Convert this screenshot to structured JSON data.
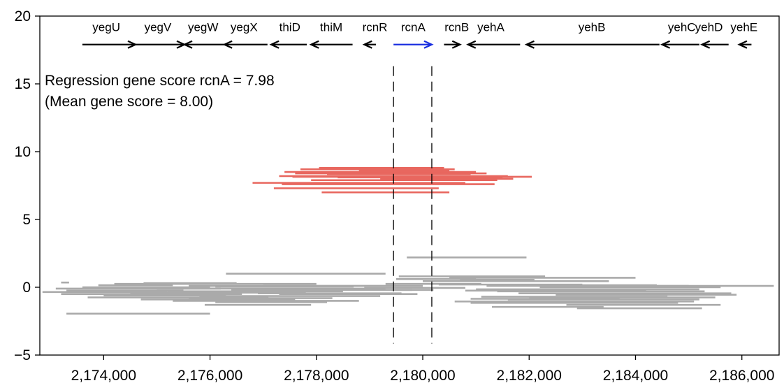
{
  "chart_data": {
    "type": "line",
    "title": "",
    "xlabel": "",
    "ylabel": "",
    "xlim": [
      2172800,
      2186700
    ],
    "ylim": [
      -5,
      20
    ],
    "x_ticks": [
      {
        "value": 2174000,
        "label": "2,174,000"
      },
      {
        "value": 2176000,
        "label": "2,176,000"
      },
      {
        "value": 2178000,
        "label": "2,178,000"
      },
      {
        "value": 2180000,
        "label": "2,180,000"
      },
      {
        "value": 2182000,
        "label": "2,182,000"
      },
      {
        "value": 2184000,
        "label": "2,184,000"
      },
      {
        "value": 2186000,
        "label": "2,186,000"
      }
    ],
    "y_ticks": [
      {
        "value": -5,
        "label": "−5"
      },
      {
        "value": 0,
        "label": "0"
      },
      {
        "value": 5,
        "label": "5"
      },
      {
        "value": 10,
        "label": "10"
      },
      {
        "value": 15,
        "label": "15"
      },
      {
        "value": 20,
        "label": "20"
      }
    ],
    "annotations": [
      "Regression gene score rcnA = 7.98",
      "(Mean gene score = 8.00)"
    ],
    "highlight_lines_x": [
      2179450,
      2180170
    ],
    "genes": [
      {
        "name": "yegU",
        "start": 2173600,
        "end": 2174600,
        "strand": "+",
        "color": "#000000",
        "label_x": 2174050
      },
      {
        "name": "yegV",
        "start": 2174600,
        "end": 2175520,
        "strand": "+",
        "color": "#000000",
        "label_x": 2175020
      },
      {
        "name": "yegW",
        "start": 2175520,
        "end": 2176270,
        "strand": "-",
        "color": "#000000",
        "label_x": 2175870
      },
      {
        "name": "yegX",
        "start": 2176270,
        "end": 2177080,
        "strand": "-",
        "color": "#000000",
        "label_x": 2176640
      },
      {
        "name": "thiD",
        "start": 2177150,
        "end": 2177820,
        "strand": "-",
        "color": "#000000",
        "label_x": 2177500
      },
      {
        "name": "thiM",
        "start": 2177900,
        "end": 2178680,
        "strand": "-",
        "color": "#000000",
        "label_x": 2178280
      },
      {
        "name": "rcnR",
        "start": 2178900,
        "end": 2179120,
        "strand": "-",
        "color": "#000000",
        "label_x": 2179100
      },
      {
        "name": "rcnA",
        "start": 2179450,
        "end": 2180170,
        "strand": "+",
        "color": "#1a2fe0",
        "label_x": 2179820
      },
      {
        "name": "rcnB",
        "start": 2180400,
        "end": 2180700,
        "strand": "+",
        "color": "#000000",
        "label_x": 2180640
      },
      {
        "name": "yehA",
        "start": 2180850,
        "end": 2181830,
        "strand": "-",
        "color": "#000000",
        "label_x": 2181280
      },
      {
        "name": "yehB",
        "start": 2181950,
        "end": 2184450,
        "strand": "-",
        "color": "#000000",
        "label_x": 2183180
      },
      {
        "name": "yehC",
        "start": 2184500,
        "end": 2185200,
        "strand": "-",
        "color": "#000000",
        "label_x": 2184870
      },
      {
        "name": "yehD",
        "start": 2185250,
        "end": 2185750,
        "strand": "-",
        "color": "#000000",
        "label_x": 2185380
      },
      {
        "name": "yehE",
        "start": 2185950,
        "end": 2186180,
        "strand": "-",
        "color": "#000000",
        "label_x": 2186040
      }
    ],
    "gene_arrow_y": 17.9,
    "gene_label_y": 18.9,
    "series": [
      {
        "color": "#e8675f",
        "segments": [
          [
            2178050,
            2180400,
            8.8
          ],
          [
            2177700,
            2180600,
            8.7
          ],
          [
            2178800,
            2180500,
            8.6
          ],
          [
            2177400,
            2181000,
            8.5
          ],
          [
            2177600,
            2181200,
            8.4
          ],
          [
            2178200,
            2180900,
            8.35
          ],
          [
            2177300,
            2181600,
            8.2
          ],
          [
            2177550,
            2182050,
            8.15
          ],
          [
            2178400,
            2181500,
            8.1
          ],
          [
            2179200,
            2181700,
            8.0
          ],
          [
            2177900,
            2181400,
            7.9
          ],
          [
            2176800,
            2180800,
            7.7
          ],
          [
            2177350,
            2181350,
            7.6
          ],
          [
            2177200,
            2180300,
            7.3
          ],
          [
            2178100,
            2180500,
            7.0
          ]
        ]
      },
      {
        "color": "#aaaaaa",
        "segments": [
          [
            2179700,
            2181950,
            2.2
          ],
          [
            2176300,
            2179300,
            1.0
          ],
          [
            2179550,
            2182300,
            0.8
          ],
          [
            2180500,
            2184000,
            0.7
          ],
          [
            2179500,
            2181000,
            0.6
          ],
          [
            2180700,
            2182100,
            0.55
          ],
          [
            2180000,
            2183500,
            0.45
          ],
          [
            2173200,
            2173350,
            0.35
          ],
          [
            2174750,
            2176500,
            0.3
          ],
          [
            2174200,
            2178000,
            0.25
          ],
          [
            2179300,
            2181100,
            0.25
          ],
          [
            2180300,
            2183000,
            0.2
          ],
          [
            2173900,
            2175300,
            0.15
          ],
          [
            2181600,
            2184400,
            0.15
          ],
          [
            2175600,
            2179500,
            0.1
          ],
          [
            2177000,
            2180000,
            0.1
          ],
          [
            2181200,
            2185000,
            0.1
          ],
          [
            2182800,
            2186600,
            0.1
          ],
          [
            2176100,
            2178700,
            0.05
          ],
          [
            2182200,
            2185600,
            0.0
          ],
          [
            2173600,
            2176000,
            0.0
          ],
          [
            2178900,
            2180800,
            -0.05
          ],
          [
            2173100,
            2176200,
            -0.1
          ],
          [
            2175000,
            2179300,
            -0.1
          ],
          [
            2181000,
            2185200,
            -0.15
          ],
          [
            2176400,
            2179800,
            -0.2
          ],
          [
            2179000,
            2180200,
            -0.2
          ],
          [
            2173300,
            2175500,
            -0.25
          ],
          [
            2180800,
            2184200,
            -0.25
          ],
          [
            2175200,
            2178500,
            -0.3
          ],
          [
            2181400,
            2185300,
            -0.3
          ],
          [
            2172850,
            2175200,
            -0.35
          ],
          [
            2174500,
            2177800,
            -0.4
          ],
          [
            2176900,
            2179600,
            -0.45
          ],
          [
            2181800,
            2185800,
            -0.45
          ],
          [
            2173200,
            2176600,
            -0.5
          ],
          [
            2177300,
            2179900,
            -0.5
          ],
          [
            2182500,
            2185900,
            -0.55
          ],
          [
            2174000,
            2176300,
            -0.6
          ],
          [
            2175800,
            2179200,
            -0.65
          ],
          [
            2181100,
            2184600,
            -0.7
          ],
          [
            2173700,
            2177100,
            -0.75
          ],
          [
            2182000,
            2185500,
            -0.75
          ],
          [
            2175600,
            2178300,
            -0.8
          ],
          [
            2180900,
            2183700,
            -0.85
          ],
          [
            2174700,
            2177600,
            -0.9
          ],
          [
            2181600,
            2185200,
            -0.9
          ],
          [
            2175300,
            2178800,
            -1.0
          ],
          [
            2180600,
            2185100,
            -1.05
          ],
          [
            2176100,
            2178200,
            -1.1
          ],
          [
            2180900,
            2184800,
            -1.15
          ],
          [
            2175900,
            2177900,
            -1.3
          ],
          [
            2182700,
            2185600,
            -1.3
          ],
          [
            2181300,
            2183400,
            -1.45
          ],
          [
            2182900,
            2185250,
            -1.55
          ],
          [
            2173300,
            2176000,
            -1.95
          ]
        ]
      }
    ]
  }
}
